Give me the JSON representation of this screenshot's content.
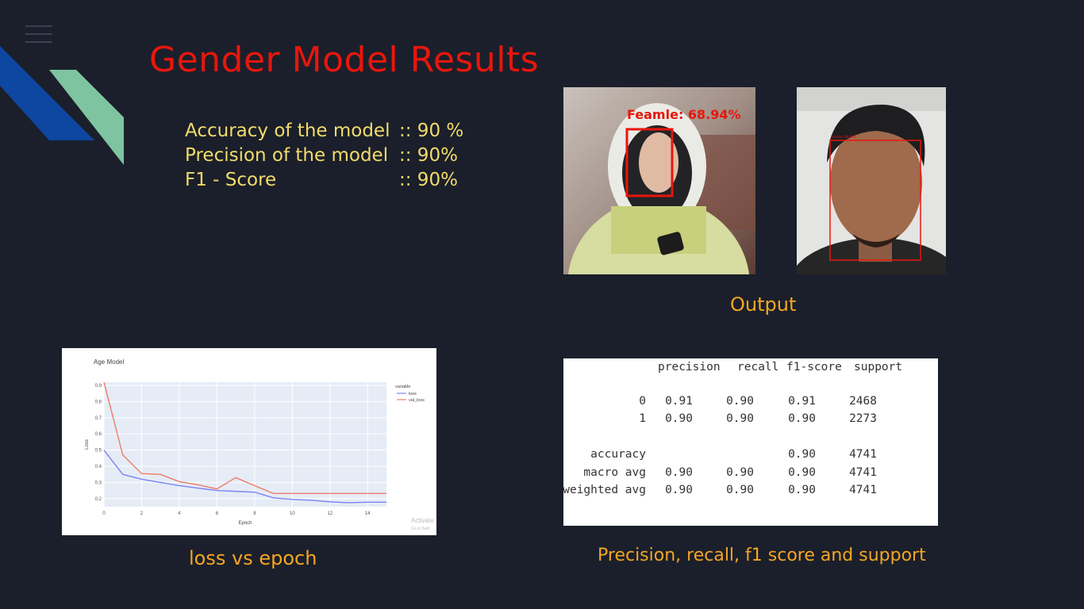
{
  "slide": {
    "title": "Gender Model Results",
    "metrics": [
      {
        "label": "Accuracy of the model",
        "value": ":: 90 %"
      },
      {
        "label": "Precision of the model",
        "value": ":: 90%"
      },
      {
        "label": "F1 - Score",
        "value": ":: 90%"
      }
    ],
    "output_caption": "Output",
    "loss_caption": "loss vs epoch",
    "report_caption": "Precision, recall, f1 score and support",
    "photo1_label": "Feamle: 68.94%",
    "photo2_label": "Female: 68.94%"
  },
  "chart_data": {
    "type": "line",
    "title": "Age Model",
    "xlabel": "Epoch",
    "ylabel": "Loss",
    "legend_title": "variable",
    "legend_position": "top-right",
    "xlim": [
      0,
      15
    ],
    "ylim": [
      0.15,
      0.92
    ],
    "x_ticks": [
      0,
      2,
      4,
      6,
      8,
      10,
      12,
      14
    ],
    "y_ticks": [
      0.2,
      0.3,
      0.4,
      0.5,
      0.6,
      0.7,
      0.8,
      0.9
    ],
    "x": [
      0,
      1,
      2,
      3,
      4,
      5,
      6,
      7,
      8,
      9,
      10,
      11,
      12,
      13,
      14,
      15
    ],
    "series": [
      {
        "name": "loss",
        "color": "#7b83f5",
        "values": [
          0.5,
          0.35,
          0.32,
          0.3,
          0.28,
          0.265,
          0.25,
          0.245,
          0.24,
          0.205,
          0.195,
          0.19,
          0.18,
          0.175,
          0.178,
          0.178
        ]
      },
      {
        "name": "val_loss",
        "color": "#ef7b67",
        "values": [
          0.92,
          0.47,
          0.355,
          0.35,
          0.305,
          0.285,
          0.26,
          0.33,
          0.28,
          0.232,
          0.232,
          0.232,
          0.232,
          0.232,
          0.232,
          0.232
        ]
      }
    ],
    "watermark": [
      "Activate",
      "Go to Setti"
    ]
  },
  "report": {
    "headers": [
      "precision",
      "recall",
      "f1-score",
      "support"
    ],
    "rows": [
      {
        "label": "0",
        "precision": "0.91",
        "recall": "0.90",
        "f1": "0.91",
        "support": "2468"
      },
      {
        "label": "1",
        "precision": "0.90",
        "recall": "0.90",
        "f1": "0.90",
        "support": "2273"
      },
      {
        "label": "accuracy",
        "precision": "",
        "recall": "",
        "f1": "0.90",
        "support": "4741"
      },
      {
        "label": "macro avg",
        "precision": "0.90",
        "recall": "0.90",
        "f1": "0.90",
        "support": "4741"
      },
      {
        "label": "weighted avg",
        "precision": "0.90",
        "recall": "0.90",
        "f1": "0.90",
        "support": "4741"
      }
    ]
  },
  "colors": {
    "background": "#1b1f2b",
    "title": "#e8160c",
    "metrics": "#f2dc6a",
    "caption": "#f5a623",
    "box": "#e8160c"
  },
  "icons": {
    "menu": "hamburger-icon"
  }
}
